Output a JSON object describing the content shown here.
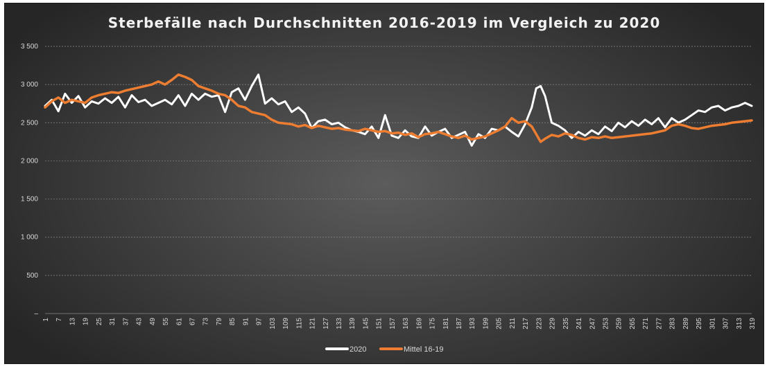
{
  "chart_data": {
    "type": "line",
    "title": "Sterbefälle nach Durchschnitten 2016-2019 im Vergleich zu 2020",
    "xlabel": "",
    "ylabel": "",
    "ylim": [
      0,
      3500
    ],
    "yticks": [
      0,
      500,
      1000,
      1500,
      2000,
      2500,
      3000,
      3500
    ],
    "ytick_labels": [
      "–",
      "500",
      "1 000",
      "1 500",
      "2 000",
      "2 500",
      "3 000",
      "3 500"
    ],
    "xlim": [
      1,
      319
    ],
    "xticks": [
      1,
      7,
      13,
      19,
      25,
      31,
      37,
      43,
      49,
      55,
      61,
      67,
      73,
      79,
      85,
      91,
      97,
      103,
      109,
      115,
      121,
      127,
      133,
      139,
      145,
      151,
      157,
      163,
      169,
      175,
      181,
      187,
      193,
      199,
      205,
      211,
      217,
      223,
      229,
      235,
      241,
      247,
      253,
      259,
      265,
      271,
      277,
      283,
      289,
      295,
      301,
      307,
      313,
      319
    ],
    "grid": true,
    "legend": "bottom",
    "series": [
      {
        "name": "2020",
        "color": "#ffffff",
        "x": [
          1,
          4,
          7,
          10,
          13,
          16,
          19,
          22,
          25,
          28,
          31,
          34,
          37,
          40,
          43,
          46,
          49,
          52,
          55,
          58,
          61,
          64,
          67,
          70,
          73,
          76,
          79,
          82,
          85,
          88,
          91,
          94,
          97,
          100,
          103,
          106,
          109,
          112,
          115,
          118,
          121,
          124,
          127,
          130,
          133,
          136,
          139,
          142,
          145,
          148,
          151,
          154,
          157,
          160,
          163,
          166,
          169,
          172,
          175,
          178,
          181,
          184,
          187,
          190,
          193,
          196,
          199,
          202,
          205,
          208,
          211,
          214,
          217,
          220,
          222,
          224,
          226,
          229,
          232,
          235,
          238,
          241,
          244,
          247,
          250,
          253,
          256,
          259,
          262,
          265,
          268,
          271,
          274,
          277,
          280,
          283,
          286,
          289,
          292,
          295,
          298,
          301,
          304,
          307,
          310,
          313,
          316,
          319
        ],
        "values": [
          2720,
          2800,
          2650,
          2880,
          2760,
          2850,
          2700,
          2780,
          2750,
          2820,
          2760,
          2840,
          2700,
          2860,
          2770,
          2800,
          2720,
          2760,
          2800,
          2740,
          2860,
          2720,
          2880,
          2800,
          2880,
          2840,
          2860,
          2640,
          2900,
          2950,
          2800,
          2980,
          3130,
          2750,
          2820,
          2740,
          2780,
          2640,
          2700,
          2620,
          2430,
          2520,
          2540,
          2480,
          2500,
          2440,
          2400,
          2380,
          2350,
          2450,
          2300,
          2600,
          2330,
          2300,
          2400,
          2320,
          2300,
          2450,
          2330,
          2380,
          2420,
          2300,
          2340,
          2380,
          2200,
          2350,
          2300,
          2420,
          2400,
          2450,
          2380,
          2320,
          2480,
          2700,
          2950,
          2980,
          2850,
          2500,
          2460,
          2400,
          2300,
          2380,
          2330,
          2400,
          2350,
          2450,
          2390,
          2500,
          2440,
          2520,
          2460,
          2540,
          2480,
          2560,
          2440,
          2560,
          2500,
          2540,
          2600,
          2660,
          2640,
          2700,
          2720,
          2660,
          2700,
          2720,
          2760,
          2720
        ]
      },
      {
        "name": "Mittel 16-19",
        "color": "#ed7d31",
        "x": [
          1,
          4,
          7,
          10,
          13,
          16,
          19,
          22,
          25,
          28,
          31,
          34,
          37,
          40,
          43,
          46,
          49,
          52,
          55,
          58,
          61,
          64,
          67,
          70,
          73,
          76,
          79,
          82,
          85,
          88,
          91,
          94,
          97,
          100,
          103,
          106,
          109,
          112,
          115,
          118,
          121,
          124,
          127,
          130,
          133,
          136,
          139,
          142,
          145,
          148,
          151,
          154,
          157,
          160,
          163,
          166,
          169,
          172,
          175,
          178,
          181,
          184,
          187,
          190,
          193,
          196,
          199,
          202,
          205,
          208,
          211,
          214,
          217,
          220,
          222,
          224,
          226,
          229,
          232,
          235,
          238,
          241,
          244,
          247,
          250,
          253,
          256,
          259,
          262,
          265,
          268,
          271,
          274,
          277,
          280,
          283,
          286,
          289,
          292,
          295,
          298,
          301,
          304,
          307,
          310,
          313,
          316,
          319
        ],
        "values": [
          2700,
          2780,
          2830,
          2760,
          2800,
          2780,
          2760,
          2830,
          2860,
          2880,
          2900,
          2890,
          2920,
          2940,
          2960,
          2980,
          3000,
          3040,
          3000,
          3060,
          3130,
          3100,
          3060,
          2980,
          2950,
          2920,
          2880,
          2860,
          2800,
          2720,
          2700,
          2640,
          2620,
          2600,
          2540,
          2500,
          2490,
          2480,
          2450,
          2470,
          2430,
          2460,
          2440,
          2420,
          2430,
          2410,
          2400,
          2390,
          2420,
          2400,
          2380,
          2390,
          2360,
          2370,
          2340,
          2360,
          2310,
          2350,
          2360,
          2380,
          2350,
          2320,
          2300,
          2330,
          2280,
          2300,
          2320,
          2360,
          2400,
          2450,
          2560,
          2500,
          2520,
          2450,
          2350,
          2250,
          2290,
          2340,
          2320,
          2360,
          2340,
          2300,
          2280,
          2310,
          2300,
          2320,
          2300,
          2310,
          2320,
          2330,
          2340,
          2350,
          2360,
          2380,
          2400,
          2460,
          2480,
          2460,
          2430,
          2420,
          2440,
          2460,
          2470,
          2480,
          2500,
          2510,
          2520,
          2530
        ]
      }
    ]
  }
}
